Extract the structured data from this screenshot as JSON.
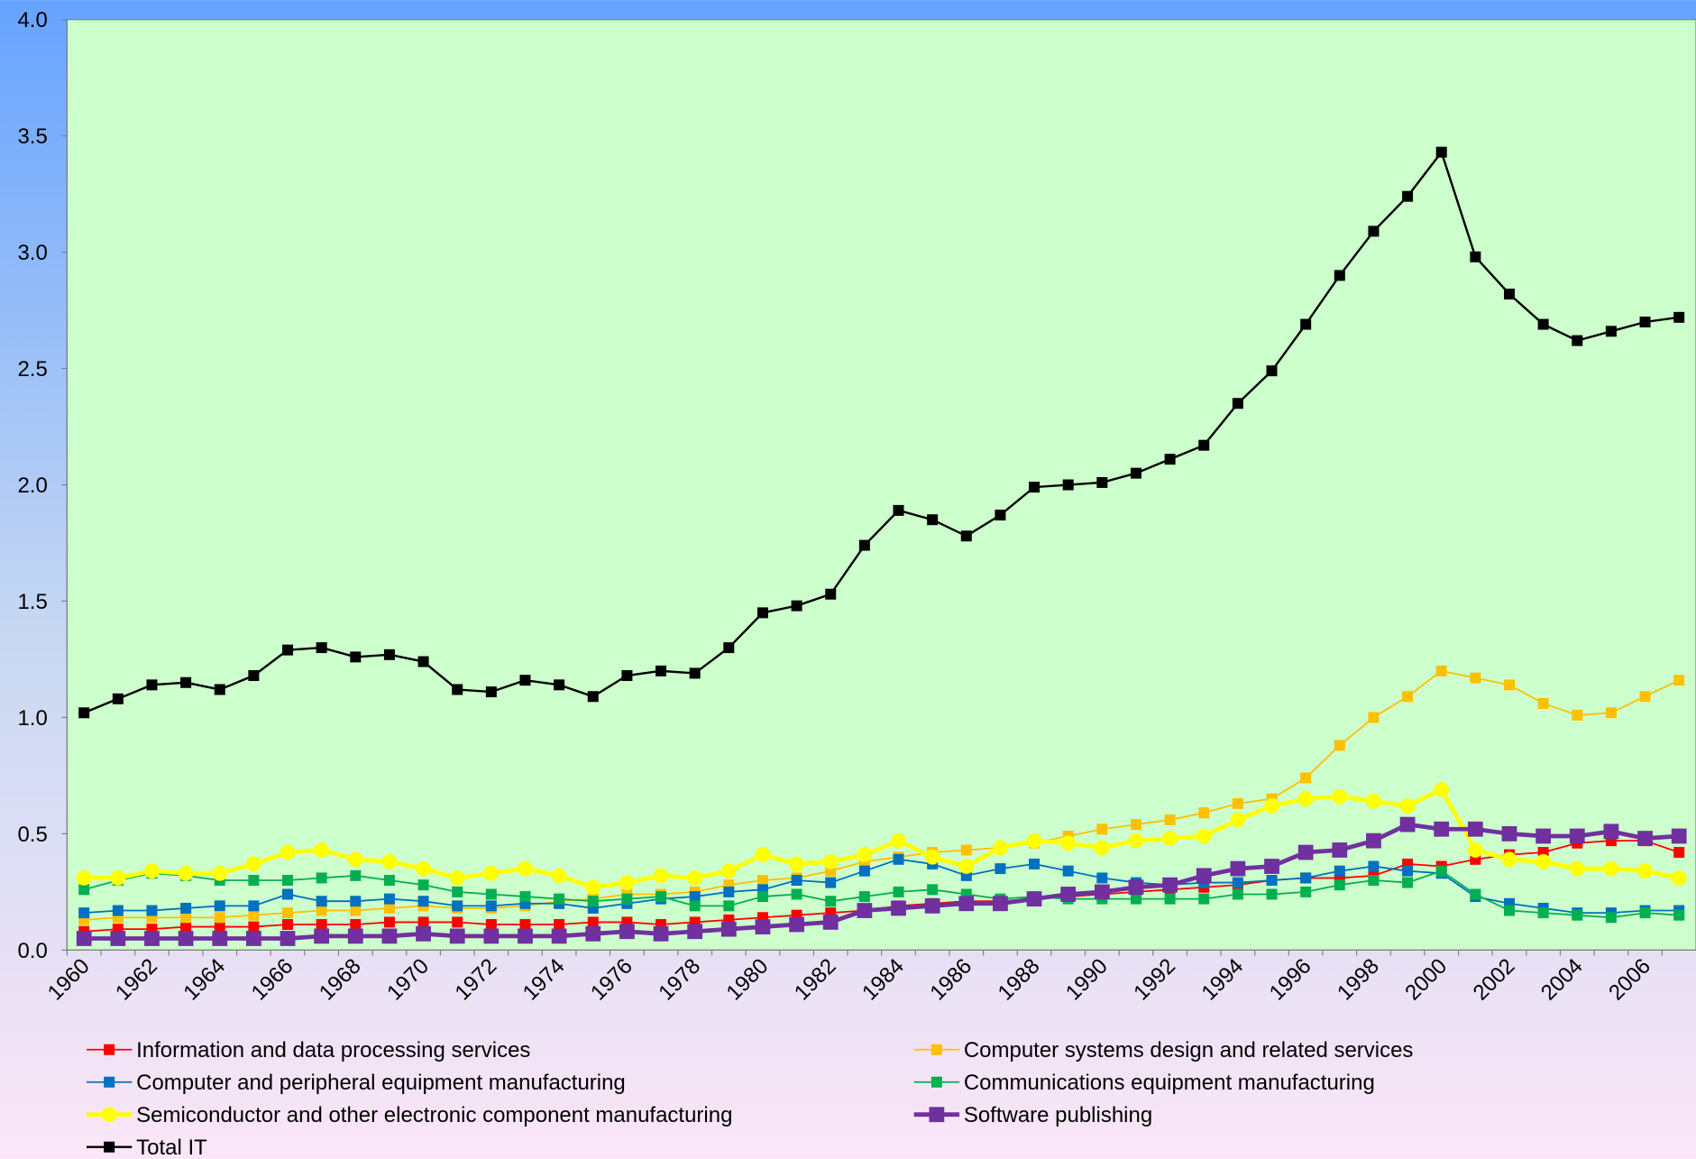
{
  "chart_data": {
    "type": "line",
    "categories": [
      "1960",
      null,
      "1962",
      null,
      "1964",
      null,
      "1966",
      null,
      "1968",
      null,
      "1970",
      null,
      "1972",
      null,
      "1974",
      null,
      "1976",
      null,
      "1978",
      null,
      "1980",
      null,
      "1982",
      null,
      "1984",
      null,
      "1986",
      null,
      "1988",
      null,
      "1990",
      null,
      "1992",
      null,
      "1994",
      null,
      "1996",
      null,
      "1998",
      null,
      "2000",
      null,
      "2002",
      null,
      "2004",
      null,
      "2006",
      null
    ],
    "ylim": [
      0,
      4
    ],
    "yticks": [
      {
        "value": 0,
        "label": "0.0"
      },
      0.5,
      {
        "value": 1,
        "label": "1.0"
      },
      1.5,
      {
        "value": 2,
        "label": "2.0"
      },
      2.5,
      {
        "value": 3,
        "label": "3.0"
      },
      3.5,
      {
        "value": 4,
        "label": "4.0"
      }
    ],
    "grid": false,
    "legend": "bottom",
    "series": [
      {
        "name": "Information and data processing services",
        "color": "#ff0000",
        "marker": "square",
        "line_width": 1.5,
        "values": [
          0.08,
          0.09,
          0.09,
          0.1,
          0.1,
          0.1,
          0.11,
          0.11,
          0.11,
          0.12,
          0.12,
          0.12,
          0.11,
          0.11,
          0.11,
          0.12,
          0.12,
          0.11,
          0.12,
          0.13,
          0.14,
          0.15,
          0.16,
          0.17,
          0.19,
          0.2,
          0.21,
          0.21,
          0.22,
          0.23,
          0.24,
          0.25,
          0.26,
          0.27,
          0.28,
          0.3,
          0.31,
          0.31,
          0.32,
          0.37,
          0.36,
          0.39,
          0.41,
          0.42,
          0.46,
          0.47,
          0.47,
          0.42
        ]
      },
      {
        "name": "Computer systems design and related services",
        "color": "#ffc000",
        "marker": "square",
        "line_width": 1.5,
        "values": [
          0.13,
          0.14,
          0.14,
          0.14,
          0.14,
          0.15,
          0.16,
          0.17,
          0.17,
          0.18,
          0.19,
          0.18,
          0.18,
          0.19,
          0.21,
          0.22,
          0.24,
          0.24,
          0.25,
          0.28,
          0.3,
          0.31,
          0.34,
          0.38,
          0.4,
          0.42,
          0.43,
          0.44,
          0.46,
          0.49,
          0.52,
          0.54,
          0.56,
          0.59,
          0.63,
          0.65,
          0.74,
          0.88,
          1.0,
          1.09,
          1.2,
          1.17,
          1.14,
          1.06,
          1.01,
          1.02,
          1.09,
          1.16
        ]
      },
      {
        "name": "Computer and peripheral equipment manufacturing",
        "color": "#0070c0",
        "marker": "square",
        "line_width": 1.5,
        "values": [
          0.16,
          0.17,
          0.17,
          0.18,
          0.19,
          0.19,
          0.24,
          0.21,
          0.21,
          0.22,
          0.21,
          0.19,
          0.19,
          0.2,
          0.2,
          0.18,
          0.2,
          0.22,
          0.23,
          0.25,
          0.26,
          0.3,
          0.29,
          0.34,
          0.39,
          0.37,
          0.32,
          0.35,
          0.37,
          0.34,
          0.31,
          0.29,
          0.28,
          0.29,
          0.29,
          0.3,
          0.31,
          0.34,
          0.36,
          0.34,
          0.33,
          0.23,
          0.2,
          0.18,
          0.16,
          0.16,
          0.17,
          0.17
        ]
      },
      {
        "name": "Communications equipment manufacturing",
        "color": "#00b050",
        "marker": "square",
        "line_width": 1.5,
        "values": [
          0.26,
          0.3,
          0.33,
          0.32,
          0.3,
          0.3,
          0.3,
          0.31,
          0.32,
          0.3,
          0.28,
          0.25,
          0.24,
          0.23,
          0.22,
          0.21,
          0.22,
          0.23,
          0.19,
          0.19,
          0.23,
          0.24,
          0.21,
          0.23,
          0.25,
          0.26,
          0.24,
          0.22,
          0.23,
          0.22,
          0.22,
          0.22,
          0.22,
          0.22,
          0.24,
          0.24,
          0.25,
          0.28,
          0.3,
          0.29,
          0.34,
          0.24,
          0.17,
          0.16,
          0.15,
          0.14,
          0.16,
          0.15
        ]
      },
      {
        "name": "Semiconductor and other electronic component manufacturing",
        "color": "#ffff00",
        "marker": "circle",
        "line_width": 4,
        "values": [
          0.31,
          0.31,
          0.34,
          0.33,
          0.33,
          0.37,
          0.42,
          0.43,
          0.39,
          0.38,
          0.35,
          0.31,
          0.33,
          0.35,
          0.32,
          0.27,
          0.29,
          0.32,
          0.31,
          0.34,
          0.41,
          0.37,
          0.38,
          0.41,
          0.47,
          0.4,
          0.36,
          0.44,
          0.47,
          0.46,
          0.44,
          0.47,
          0.48,
          0.49,
          0.56,
          0.62,
          0.65,
          0.66,
          0.64,
          0.62,
          0.69,
          0.43,
          0.39,
          0.38,
          0.35,
          0.35,
          0.34,
          0.31
        ]
      },
      {
        "name": "Software publishing",
        "color": "#7030a0",
        "marker": "square-large",
        "line_width": 4,
        "values": [
          0.05,
          0.05,
          0.05,
          0.05,
          0.05,
          0.05,
          0.05,
          0.06,
          0.06,
          0.06,
          0.07,
          0.06,
          0.06,
          0.06,
          0.06,
          0.07,
          0.08,
          0.07,
          0.08,
          0.09,
          0.1,
          0.11,
          0.12,
          0.17,
          0.18,
          0.19,
          0.2,
          0.2,
          0.22,
          0.24,
          0.25,
          0.27,
          0.28,
          0.32,
          0.35,
          0.36,
          0.42,
          0.43,
          0.47,
          0.54,
          0.52,
          0.52,
          0.5,
          0.49,
          0.49,
          0.51,
          0.48,
          0.49
        ]
      },
      {
        "name": "Total IT",
        "color": "#000000",
        "marker": "square",
        "line_width": 2,
        "values": [
          1.02,
          1.08,
          1.14,
          1.15,
          1.12,
          1.18,
          1.29,
          1.3,
          1.26,
          1.27,
          1.24,
          1.12,
          1.11,
          1.16,
          1.14,
          1.09,
          1.18,
          1.2,
          1.19,
          1.3,
          1.45,
          1.48,
          1.53,
          1.74,
          1.89,
          1.85,
          1.78,
          1.87,
          1.99,
          2.0,
          2.01,
          2.05,
          2.11,
          2.17,
          2.35,
          2.49,
          2.69,
          2.9,
          3.09,
          3.24,
          3.43,
          2.98,
          2.82,
          2.69,
          2.62,
          2.66,
          2.7,
          2.72
        ]
      }
    ]
  }
}
